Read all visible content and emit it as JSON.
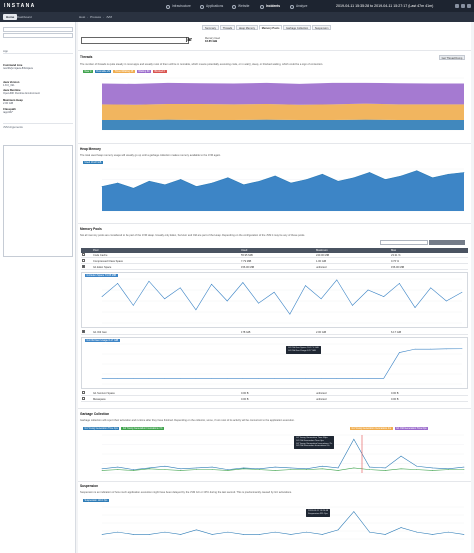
{
  "topbar": {
    "logo": "INSTANA",
    "nav": [
      {
        "label": "Infrastructure",
        "icon": "infrastructure-icon",
        "active": false
      },
      {
        "label": "Applications",
        "icon": "applications-icon",
        "active": false
      },
      {
        "label": "Website",
        "icon": "website-icon",
        "active": false
      },
      {
        "label": "Incidents",
        "icon": "incidents-icon",
        "active": true
      },
      {
        "label": "Analyze",
        "icon": "analyze-icon",
        "active": false
      }
    ],
    "daterange": "2019-04-11 15:35:28 to 2019-04-11 15:27:17 (Last 47m 41m)"
  },
  "subbar": {
    "home": "Home",
    "dashboard": "Dashboard",
    "crumbs": [
      "Host",
      "Process",
      "JVM"
    ]
  },
  "sidebar": {
    "search_placeholder": "",
    "section_app": "App",
    "section_jvm": "JVM Arguments",
    "details": [
      {
        "label": "Command Line",
        "value": "/usr/lib/jvm/java-8/bin/java"
      },
      {
        "label": "Java Version",
        "value": "1.8.0_191"
      },
      {
        "label": "Java Runtime",
        "value": "OpenJDK Runtime Environment"
      },
      {
        "label": "Maximum Heap",
        "value": "2.00 GiB"
      },
      {
        "label": "Classpath",
        "value": "/app/lib/*"
      }
    ]
  },
  "main": {
    "entity_suffix": "jar",
    "mem_label": "Memory Used",
    "mem_value": "16.65 GiB",
    "tabs": [
      {
        "label": "Summary",
        "active": false
      },
      {
        "label": "Threads",
        "active": false
      },
      {
        "label": "Heap Memory",
        "active": false
      },
      {
        "label": "Memory Pools",
        "active": true
      },
      {
        "label": "Garbage Collection",
        "active": false
      },
      {
        "label": "Suspension",
        "active": false
      }
    ],
    "threads": {
      "title": "Threads",
      "desc": "The number of threads is quite steady in most apps and usually most of them will be in runnable, which means potentially executing code, or in wait(), sleep, or blocked waiting, which could be a sign of contention.",
      "button": "Get Thread Dump",
      "legend": [
        {
          "label": "New 0",
          "color": "#3fa34d"
        },
        {
          "label": "Runnable 29",
          "color": "#2c7bb6"
        },
        {
          "label": "Timed Waiting 45",
          "color": "#f0ad4e"
        },
        {
          "label": "Waiting 60",
          "color": "#9b6bcc"
        },
        {
          "label": "Blocked 0",
          "color": "#d9534f"
        }
      ]
    },
    "heap": {
      "title": "Heap Memory",
      "desc": "The total used heap memory usage will usually go up until a garbage collection makes memory available to the JVM again.",
      "legend": "Used 19.22 GiB"
    },
    "pools": {
      "title": "Memory Pools",
      "desc": "Not all memory pools are considered to be part of the JVM Heap. Usually only Eden, Survivor and Old are part of the Heap. Depending on the configuration of the JVM it may be any of these pools.",
      "headers": [
        "Pool",
        "Used",
        "Maximum",
        "Max"
      ],
      "rows": [
        {
          "name": "Code Cache",
          "used": "55.95 MiB",
          "max": "240.00 MiB",
          "pct": "23.31 %",
          "checked": false
        },
        {
          "name": "Compressed Class Space",
          "used": "7.79 MiB",
          "max": "1.00 GiB",
          "pct": "0.76 %",
          "checked": false
        },
        {
          "name": "G1 Eden Space",
          "used": "156.00 MiB",
          "max": "unlimited",
          "pct": "156.00 MiB",
          "checked": true
        },
        {
          "name": "G1 Old Gen",
          "used": "178 GiB",
          "max": "2.00 GiB",
          "pct": "6.17 GiB",
          "checked": true
        },
        {
          "name": "G1 Survivor Space",
          "used": "0.00 B",
          "max": "unlimited",
          "pct": "0.00 B",
          "checked": false
        },
        {
          "name": "Metaspace",
          "used": "0.00 B",
          "max": "unlimited",
          "pct": "0.00 B",
          "checked": false
        }
      ],
      "eden_label": "G1 Eden Space 74.05 MiB",
      "old_label": "G1 Old Gen Usage 6.17 GiB",
      "old_tooltip": [
        "G1 Old Gen Space 10:17 4 GiB",
        "G1 Old Gen Usage 6.17 GiB"
      ]
    },
    "gc": {
      "title": "Garbage Collection",
      "desc": "Garbage collection will report their activation and runtime after they have finished. Depending on the collector, some, if not most of its activity will be concurrent to the application execution.",
      "legend": [
        {
          "label": "G1 Young Generation Time 4ps",
          "color": "#2c7bb6"
        },
        {
          "label": "G1 Young Generation Invocations 7/s",
          "color": "#3fa34d"
        },
        {
          "label": "G1 Young Generation Invocations 4/s",
          "color": "#f0ad4e"
        },
        {
          "label": "G1 Old Generation Time 0ps",
          "color": "#9b6bcc"
        }
      ],
      "tooltip": [
        "G1 Young Generation Time 58ps",
        "G1 Old Generation Time 0ps",
        "G1 Young Generation Invocations 7/s",
        "G1 Old Generation Invocations 0/s"
      ]
    },
    "suspension": {
      "title": "Suspension",
      "desc": "Suspension is an indication of how much application execution might have been delayed by the JVM GC or CPU during the last second. This is predominantly caused by GC activations.",
      "legend": "Suspension 110.17ps",
      "tooltip": [
        "2019-04-11 15:24:48",
        "Suspension 311.2ps"
      ]
    }
  },
  "chart_data": [
    {
      "type": "area",
      "title": "Threads",
      "series": [
        {
          "name": "New",
          "values": [
            0,
            0,
            0,
            0,
            0,
            0,
            0,
            0,
            0,
            0,
            0,
            0
          ]
        },
        {
          "name": "Runnable",
          "values": [
            29,
            29,
            30,
            29,
            29,
            30,
            29,
            29,
            30,
            29,
            29,
            29
          ]
        },
        {
          "name": "Timed Waiting",
          "values": [
            45,
            44,
            45,
            46,
            45,
            45,
            44,
            45,
            46,
            45,
            45,
            45
          ]
        },
        {
          "name": "Waiting",
          "values": [
            60,
            60,
            61,
            60,
            60,
            61,
            60,
            62,
            60,
            61,
            60,
            60
          ]
        },
        {
          "name": "Blocked",
          "values": [
            0,
            0,
            0,
            0,
            0,
            0,
            0,
            0,
            0,
            0,
            0,
            0
          ]
        }
      ]
    },
    {
      "type": "area",
      "title": "Heap Memory",
      "series": [
        {
          "name": "Used",
          "values": [
            14,
            16,
            13,
            17,
            15,
            18,
            14,
            16,
            19,
            15,
            17,
            20,
            16,
            18,
            21,
            17,
            19,
            22,
            18,
            20,
            23,
            19,
            21,
            22
          ]
        }
      ]
    },
    {
      "type": "line",
      "title": "G1 Eden Space",
      "series": [
        {
          "name": "G1 Eden Space",
          "values": [
            60,
            90,
            40,
            95,
            55,
            80,
            30,
            88,
            50,
            92,
            45,
            70,
            20,
            85,
            55,
            98,
            40,
            75,
            60,
            90,
            35,
            80,
            50,
            70
          ]
        }
      ]
    },
    {
      "type": "line",
      "title": "G1 Old Gen",
      "series": [
        {
          "name": "G1 Old Gen",
          "values": [
            1,
            1,
            1,
            1,
            1,
            1,
            1,
            1,
            1,
            1,
            1,
            1,
            1,
            1,
            1,
            1,
            1,
            1,
            1,
            5.5,
            6.1,
            6.1,
            6.15,
            6.17
          ]
        }
      ]
    },
    {
      "type": "line",
      "title": "Garbage Collection",
      "series": [
        {
          "name": "G1 Young Generation Time",
          "values": [
            5,
            7,
            4,
            6,
            8,
            5,
            6,
            7,
            4,
            6,
            5,
            7,
            6,
            5,
            8,
            6,
            40,
            7,
            6,
            20,
            8,
            6,
            5,
            7
          ]
        },
        {
          "name": "G1 Young Generation Invocations",
          "values": [
            3,
            4,
            3,
            5,
            4,
            3,
            4,
            4,
            3,
            5,
            4,
            3,
            4,
            4,
            5,
            3,
            6,
            4,
            3,
            5,
            4,
            3,
            4,
            4
          ]
        }
      ]
    },
    {
      "type": "line",
      "title": "Suspension",
      "series": [
        {
          "name": "Suspension",
          "values": [
            2,
            3,
            2,
            2,
            3,
            2,
            4,
            2,
            3,
            2,
            2,
            3,
            2,
            3,
            2,
            4,
            12,
            3,
            2,
            5,
            3,
            2,
            3,
            2
          ]
        }
      ]
    }
  ]
}
